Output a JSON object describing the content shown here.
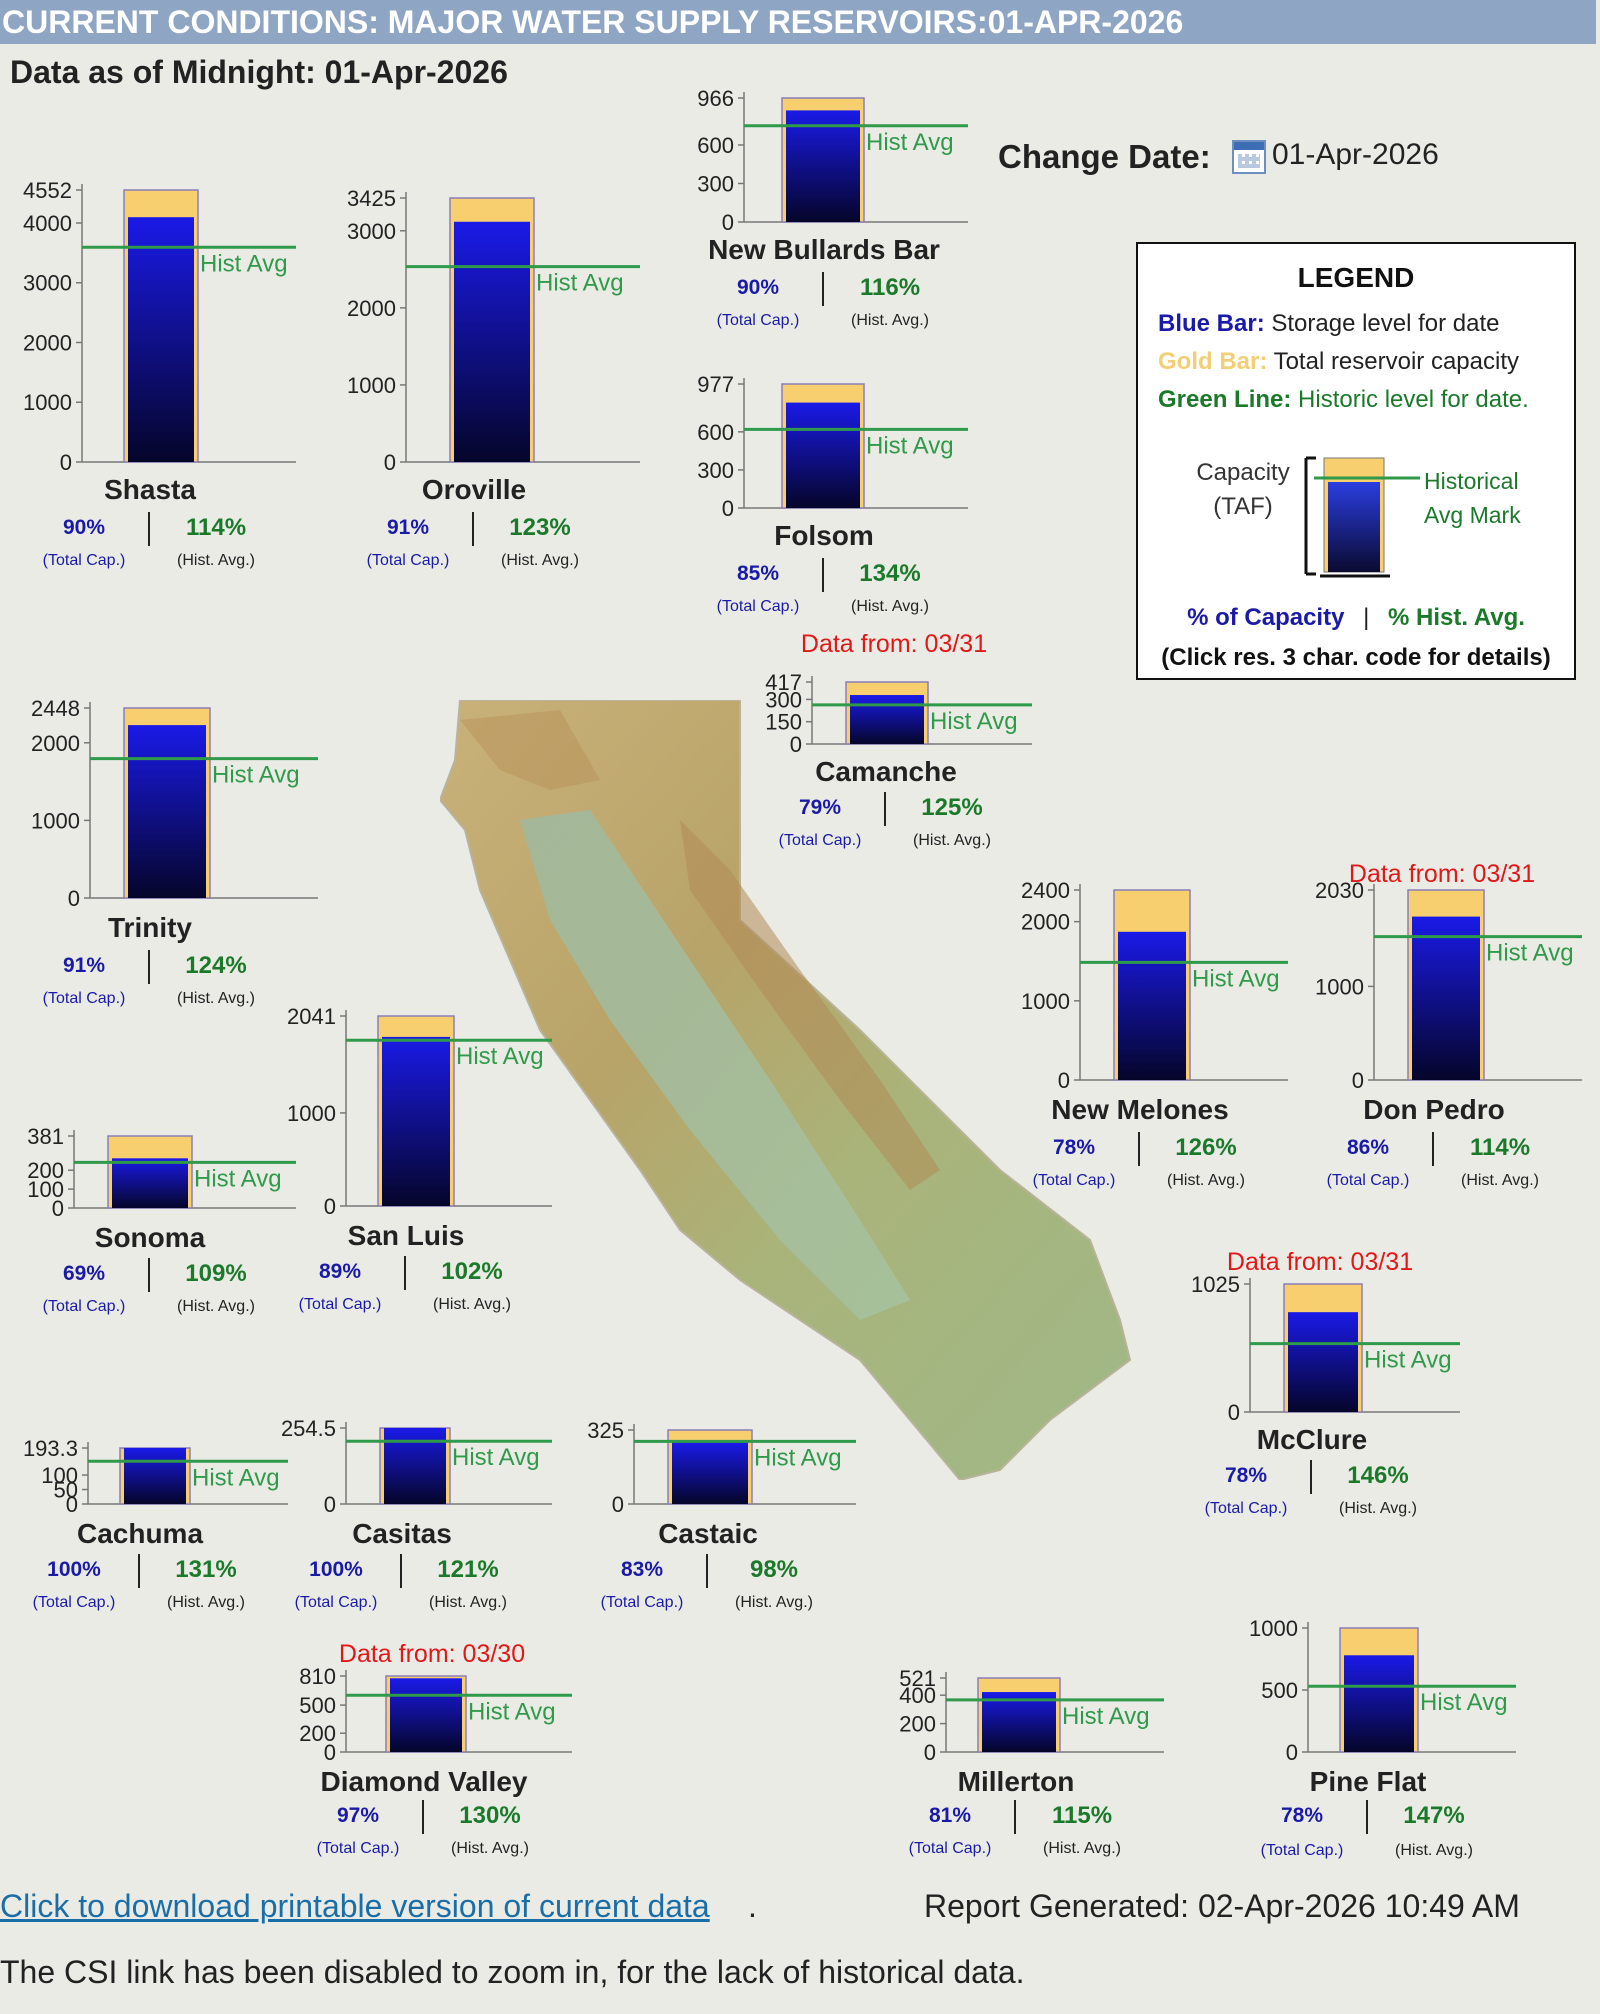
{
  "header": {
    "title": "CURRENT CONDITIONS: MAJOR WATER SUPPLY RESERVOIRS:01-APR-2026",
    "as_of": "Data as of Midnight: 01-Apr-2026",
    "change_date_label": "Change Date:",
    "change_date_value": "01-Apr-2026",
    "calendar_icon": "calendar-icon"
  },
  "legend": {
    "title": "LEGEND",
    "blue_key": "Blue Bar:",
    "blue_desc": "Storage level for date",
    "gold_key": "Gold Bar:",
    "gold_desc": "Total reservoir capacity",
    "green_key": "Green Line:",
    "green_desc": "Historic level for date.",
    "capacity_line1": "Capacity",
    "capacity_line2": "(TAF)",
    "hist_line1": "Historical",
    "hist_line2": "Avg Mark",
    "pct_capacity": "% of Capacity",
    "pct_sep": "|",
    "pct_hist": "% Hist. Avg.",
    "click_note": "(Click res. 3 char. code for details)"
  },
  "colors": {
    "storage": "#1010e0",
    "capacity": "#f7cf6e",
    "hist_line": "#2f9a4a",
    "pct_capacity": "#1a1aa8",
    "pct_hist": "#1a7a2a",
    "data_from": "#e01818"
  },
  "labels": {
    "hist_avg": "Hist Avg",
    "total_cap": "(Total Cap.)",
    "hist_avg_sub": "(Hist. Avg.)"
  },
  "reservoirs": [
    {
      "name": "Shasta",
      "capacity": 4552,
      "pct_capacity": "90%",
      "pct_hist": "114%",
      "ticks": [
        "4552",
        "4000",
        "3000",
        "2000",
        "1000",
        "0"
      ],
      "tick_values": [
        4552,
        4000,
        3000,
        2000,
        1000,
        0
      ],
      "data_from": ""
    },
    {
      "name": "Oroville",
      "capacity": 3425,
      "pct_capacity": "91%",
      "pct_hist": "123%",
      "ticks": [
        "3425",
        "3000",
        "2000",
        "1000",
        "0"
      ],
      "tick_values": [
        3425,
        3000,
        2000,
        1000,
        0
      ],
      "data_from": ""
    },
    {
      "name": "New Bullards Bar",
      "capacity": 966,
      "pct_capacity": "90%",
      "pct_hist": "116%",
      "ticks": [
        "966",
        "600",
        "300",
        "0"
      ],
      "tick_values": [
        966,
        600,
        300,
        0
      ],
      "data_from": ""
    },
    {
      "name": "Folsom",
      "capacity": 977,
      "pct_capacity": "85%",
      "pct_hist": "134%",
      "ticks": [
        "977",
        "600",
        "300",
        "0"
      ],
      "tick_values": [
        977,
        600,
        300,
        0
      ],
      "data_from": ""
    },
    {
      "name": "Camanche",
      "capacity": 417,
      "pct_capacity": "79%",
      "pct_hist": "125%",
      "ticks": [
        "417",
        "300",
        "150",
        "0"
      ],
      "tick_values": [
        417,
        300,
        150,
        0
      ],
      "data_from": "Data from: 03/31"
    },
    {
      "name": "Trinity",
      "capacity": 2448,
      "pct_capacity": "91%",
      "pct_hist": "124%",
      "ticks": [
        "2448",
        "2000",
        "1000",
        "0"
      ],
      "tick_values": [
        2448,
        2000,
        1000,
        0
      ],
      "data_from": ""
    },
    {
      "name": "New Melones",
      "capacity": 2400,
      "pct_capacity": "78%",
      "pct_hist": "126%",
      "ticks": [
        "2400",
        "2000",
        "1000",
        "0"
      ],
      "tick_values": [
        2400,
        2000,
        1000,
        0
      ],
      "data_from": ""
    },
    {
      "name": "Don Pedro",
      "capacity": 2030,
      "pct_capacity": "86%",
      "pct_hist": "114%",
      "ticks": [
        "2030",
        "1000",
        "0"
      ],
      "tick_values": [
        2030,
        1000,
        0
      ],
      "data_from": "Data from: 03/31"
    },
    {
      "name": "San Luis",
      "capacity": 2041,
      "pct_capacity": "89%",
      "pct_hist": "102%",
      "ticks": [
        "2041",
        "1000",
        "0"
      ],
      "tick_values": [
        2041,
        1000,
        0
      ],
      "data_from": ""
    },
    {
      "name": "Sonoma",
      "capacity": 381,
      "pct_capacity": "69%",
      "pct_hist": "109%",
      "ticks": [
        "381",
        "200",
        "100",
        "0"
      ],
      "tick_values": [
        381,
        200,
        100,
        0
      ],
      "data_from": ""
    },
    {
      "name": "McClure",
      "capacity": 1025,
      "pct_capacity": "78%",
      "pct_hist": "146%",
      "ticks": [
        "1025",
        "0"
      ],
      "tick_values": [
        1025,
        0
      ],
      "data_from": "Data from: 03/31"
    },
    {
      "name": "Cachuma",
      "capacity": 193.3,
      "pct_capacity": "100%",
      "pct_hist": "131%",
      "ticks": [
        "193.3",
        "100",
        "50",
        "0"
      ],
      "tick_values": [
        193.3,
        100,
        50,
        0
      ],
      "data_from": ""
    },
    {
      "name": "Casitas",
      "capacity": 254.5,
      "pct_capacity": "100%",
      "pct_hist": "121%",
      "ticks": [
        "254.5",
        "0"
      ],
      "tick_values": [
        254.5,
        0
      ],
      "data_from": ""
    },
    {
      "name": "Castaic",
      "capacity": 325,
      "pct_capacity": "83%",
      "pct_hist": "98%",
      "ticks": [
        "325",
        "0"
      ],
      "tick_values": [
        325,
        0
      ],
      "data_from": ""
    },
    {
      "name": "Diamond Valley",
      "capacity": 810,
      "pct_capacity": "97%",
      "pct_hist": "130%",
      "ticks": [
        "810",
        "500",
        "200",
        "0"
      ],
      "tick_values": [
        810,
        500,
        200,
        0
      ],
      "data_from": "Data from: 03/30"
    },
    {
      "name": "Millerton",
      "capacity": 521,
      "pct_capacity": "81%",
      "pct_hist": "115%",
      "ticks": [
        "521",
        "400",
        "200",
        "0"
      ],
      "tick_values": [
        521,
        400,
        200,
        0
      ],
      "data_from": ""
    },
    {
      "name": "Pine Flat",
      "capacity": 1000,
      "pct_capacity": "78%",
      "pct_hist": "147%",
      "ticks": [
        "1000",
        "500",
        "0"
      ],
      "tick_values": [
        1000,
        500,
        0
      ],
      "data_from": ""
    }
  ],
  "footer": {
    "download_link": "Click to download printable version of current data",
    "download_period": ".",
    "report_generated": "Report Generated: 02-Apr-2026 10:49 AM",
    "note": "The CSI link has been disabled to zoom in, for the lack of historical data."
  }
}
